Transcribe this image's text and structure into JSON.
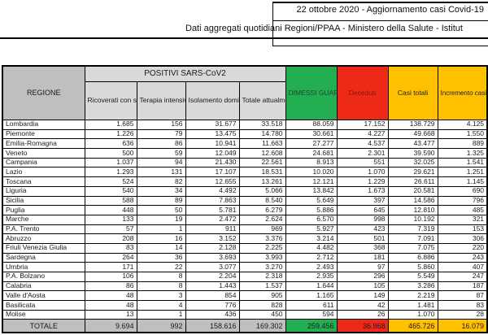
{
  "header": {
    "line1": "22 ottobre 2020 - Aggiornamento casi Covid-19",
    "line2": "Dati aggregati quotidiani Regioni/PPAA - Ministero della Salute - Istitut"
  },
  "chart_data": {
    "type": "table",
    "title": "22 ottobre 2020 - Aggiornamento casi Covid-19",
    "group_header": "POSITIVI SARS-CoV2",
    "columns": [
      "REGIONE",
      "Ricoverati con sintomi",
      "Terapia intensiva",
      "Isolamento domiciliare",
      "Totale attualmente positivi",
      "DIMESSI GUARITI",
      "Deceduti",
      "Casi totali",
      "Incremento casi totali (rispetto al giorno precedente)"
    ],
    "rows": [
      [
        "Lombardia",
        "1.685",
        "156",
        "31.677",
        "33.518",
        "88.059",
        "17.152",
        "138.729",
        "4.125"
      ],
      [
        "Piemonte",
        "1.226",
        "79",
        "13.475",
        "14.780",
        "30.661",
        "4.227",
        "49.668",
        "1.550"
      ],
      [
        "Emilia-Romagna",
        "636",
        "86",
        "10.941",
        "11.663",
        "27.277",
        "4.537",
        "43.477",
        "889"
      ],
      [
        "Veneto",
        "500",
        "59",
        "12.049",
        "12.608",
        "24.681",
        "2.301",
        "39.590",
        "1.325"
      ],
      [
        "Campania",
        "1.037",
        "94",
        "21.430",
        "22.561",
        "8.913",
        "551",
        "32.025",
        "1.541"
      ],
      [
        "Lazio",
        "1.293",
        "131",
        "17.107",
        "18.531",
        "10.020",
        "1.070",
        "29.621",
        "1.251"
      ],
      [
        "Toscana",
        "524",
        "82",
        "12.655",
        "13.261",
        "12.121",
        "1.229",
        "26.611",
        "1.145"
      ],
      [
        "Liguria",
        "540",
        "34",
        "4.492",
        "5.066",
        "13.842",
        "1.673",
        "20.581",
        "690"
      ],
      [
        "Sicilia",
        "588",
        "89",
        "7.863",
        "8.540",
        "5.649",
        "397",
        "14.586",
        "796"
      ],
      [
        "Puglia",
        "448",
        "50",
        "5.781",
        "6.279",
        "5.886",
        "645",
        "12.810",
        "485"
      ],
      [
        "Marche",
        "133",
        "19",
        "2.472",
        "2.624",
        "6.570",
        "998",
        "10.192",
        "321"
      ],
      [
        "P.A. Trento",
        "57",
        "1",
        "911",
        "969",
        "5.927",
        "423",
        "7.319",
        "153"
      ],
      [
        "Abruzzo",
        "208",
        "16",
        "3.152",
        "3.376",
        "3.214",
        "501",
        "7.091",
        "306"
      ],
      [
        "Friuli Venezia Giulia",
        "83",
        "14",
        "2.128",
        "2.225",
        "4.482",
        "368",
        "7.075",
        "220"
      ],
      [
        "Sardegna",
        "264",
        "36",
        "3.693",
        "3.993",
        "2.712",
        "181",
        "6.886",
        "243"
      ],
      [
        "Umbria",
        "171",
        "22",
        "3.077",
        "3.270",
        "2.493",
        "97",
        "5.860",
        "407"
      ],
      [
        "P.A. Bolzano",
        "106",
        "8",
        "2.204",
        "2.318",
        "2.935",
        "296",
        "5.549",
        "247"
      ],
      [
        "Calabria",
        "86",
        "8",
        "1.443",
        "1.537",
        "1.644",
        "105",
        "3.286",
        "187"
      ],
      [
        "Valle d'Aosta",
        "48",
        "3",
        "854",
        "905",
        "1.165",
        "149",
        "2.219",
        "87"
      ],
      [
        "Basilicata",
        "48",
        "4",
        "776",
        "828",
        "611",
        "42",
        "1.481",
        "83"
      ],
      [
        "Molise",
        "13",
        "1",
        "436",
        "450",
        "594",
        "26",
        "1.070",
        "28"
      ]
    ],
    "totals_row": [
      "TOTALE",
      "9.694",
      "992",
      "158.616",
      "169.302",
      "259.456",
      "36.968",
      "465.726",
      "16.079"
    ]
  },
  "colors": {
    "green": "#24ae52",
    "red": "#ef2917",
    "yellow": "#ffc000",
    "header_gray": "#d9d9d9",
    "dark_gray": "#bfbfbf",
    "dimessi_text": "#25432f",
    "deceduti_text": "#7e190d",
    "casi_text": "#1f1f1f"
  }
}
